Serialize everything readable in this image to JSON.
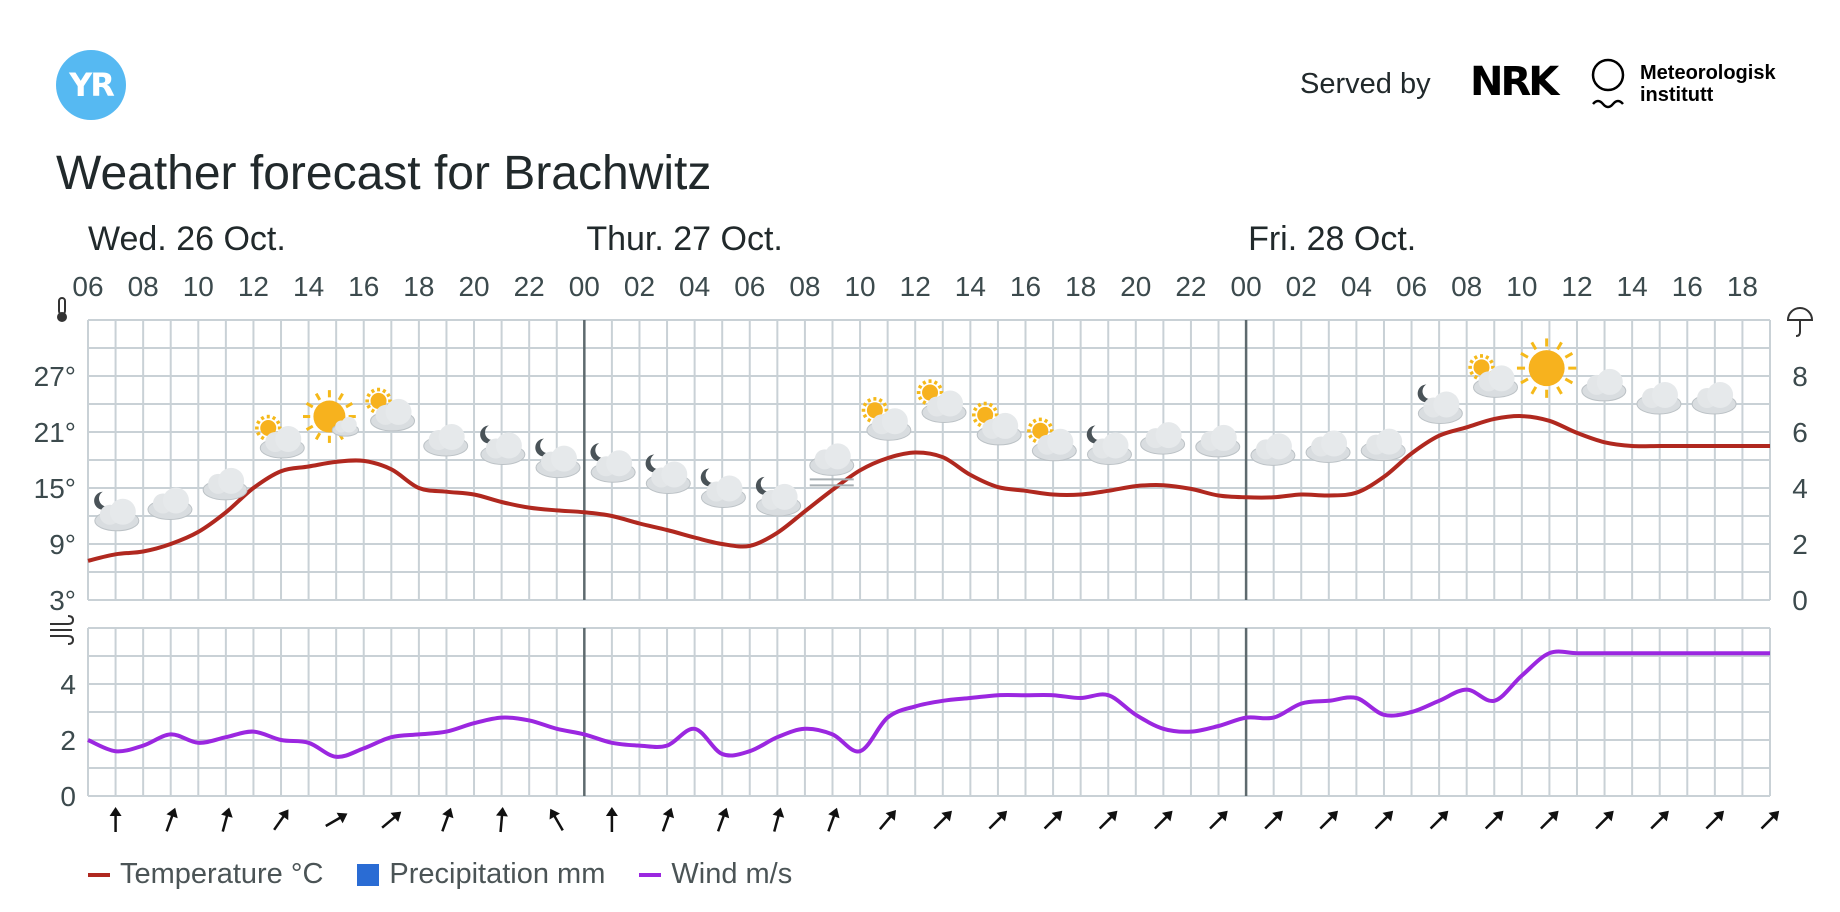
{
  "brand": {
    "logo_text": "YR",
    "served_by": "Served by",
    "nrk_text": "NRK",
    "met_line1": "Meteorologisk",
    "met_line2": "institutt"
  },
  "title": "Weather forecast for Brachwitz",
  "colors": {
    "temperature": "#b0281f",
    "wind": "#9b27e0",
    "precipitation": "#2a6cd4",
    "grid": "#c9d1d6",
    "day_divider": "#5e6a6e",
    "accent": "#56b9f2"
  },
  "icons": {
    "temperature_axis": "thermometer-icon",
    "precipitation_axis": "umbrella-icon",
    "wind_axis": "wind-icon"
  },
  "legend": [
    {
      "label": "Temperature °C",
      "color": "#b0281f",
      "shape": "line"
    },
    {
      "label": "Precipitation mm",
      "color": "#2a6cd4",
      "shape": "square"
    },
    {
      "label": "Wind m/s",
      "color": "#9b27e0",
      "shape": "line"
    }
  ],
  "chart_data": {
    "type": "line",
    "x_hours": [
      0,
      1,
      2,
      3,
      4,
      5,
      6,
      7,
      8,
      9,
      10,
      11,
      12,
      13,
      14,
      15,
      16,
      17,
      18,
      19,
      20,
      21,
      22,
      23,
      24,
      25,
      26,
      27,
      28,
      29,
      30,
      31,
      32,
      33,
      34,
      35,
      36,
      37,
      38,
      39,
      40,
      41,
      42,
      43,
      44,
      45,
      46,
      47,
      48,
      49,
      50,
      51,
      52,
      53,
      54,
      55,
      56,
      57,
      58,
      59,
      60,
      61
    ],
    "start_hour": 6,
    "hour_labels": [
      "06",
      "08",
      "10",
      "12",
      "14",
      "16",
      "18",
      "20",
      "22",
      "00",
      "02",
      "04",
      "06",
      "08",
      "10",
      "12",
      "14",
      "16",
      "18",
      "20",
      "22",
      "00",
      "02",
      "04",
      "06",
      "08",
      "10",
      "12",
      "14",
      "16",
      "18"
    ],
    "days": [
      {
        "label": "Wed. 26 Oct.",
        "start_index": 0
      },
      {
        "label": "Thur. 27 Oct.",
        "start_index": 18
      },
      {
        "label": "Fri. 28 Oct.",
        "start_index": 42
      }
    ],
    "temperature": {
      "name": "Temperature °C",
      "ylim": [
        3,
        33
      ],
      "ticks": [
        "3°",
        "9°",
        "15°",
        "21°",
        "27°"
      ],
      "tick_values": [
        3,
        9,
        15,
        21,
        27
      ],
      "values": [
        7.2,
        7.9,
        8.2,
        9.0,
        10.3,
        12.4,
        15.0,
        16.8,
        17.3,
        17.8,
        17.9,
        17.0,
        15.0,
        14.6,
        14.3,
        13.5,
        12.9,
        12.6,
        12.4,
        12.0,
        11.2,
        10.5,
        9.7,
        9.0,
        8.8,
        10.2,
        12.5,
        14.8,
        16.9,
        18.2,
        18.8,
        18.3,
        16.4,
        15.1,
        14.7,
        14.3,
        14.3,
        14.7,
        15.2,
        15.3,
        14.9,
        14.2,
        14.0,
        14.0,
        14.3,
        14.2,
        14.5,
        16.2,
        18.7,
        20.6,
        21.5,
        22.4,
        22.7,
        22.2,
        20.9,
        19.9,
        19.5,
        19.5,
        19.5,
        19.5,
        19.5,
        19.5
      ]
    },
    "precipitation": {
      "name": "Precipitation mm",
      "ylim": [
        0,
        10
      ],
      "ticks": [
        "0",
        "2",
        "4",
        "6",
        "8"
      ],
      "tick_values": [
        0,
        2,
        4,
        6,
        8
      ]
    },
    "wind": {
      "name": "Wind m/s",
      "ylim": [
        0,
        6
      ],
      "ticks": [
        "0",
        "2",
        "4"
      ],
      "tick_values": [
        0,
        2,
        4
      ],
      "values": [
        2.0,
        1.6,
        1.8,
        2.2,
        1.9,
        2.1,
        2.3,
        2.0,
        1.9,
        1.4,
        1.7,
        2.1,
        2.2,
        2.3,
        2.6,
        2.8,
        2.7,
        2.4,
        2.2,
        1.9,
        1.8,
        1.8,
        2.4,
        1.5,
        1.6,
        2.1,
        2.4,
        2.2,
        1.6,
        2.8,
        3.2,
        3.4,
        3.5,
        3.6,
        3.6,
        3.6,
        3.5,
        3.6,
        2.9,
        2.4,
        2.3,
        2.5,
        2.8,
        2.8,
        3.3,
        3.4,
        3.5,
        2.9,
        3.0,
        3.4,
        3.8,
        3.4,
        4.3,
        5.1,
        5.1,
        5.1,
        5.1,
        5.1,
        5.1,
        5.1,
        5.1,
        5.1
      ]
    },
    "weather_symbols": [
      {
        "index": 0,
        "type": "partly-cloudy-night"
      },
      {
        "index": 2,
        "type": "cloudy"
      },
      {
        "index": 4,
        "type": "cloudy"
      },
      {
        "index": 6,
        "type": "partly-cloudy-day"
      },
      {
        "index": 8,
        "type": "fair-day"
      },
      {
        "index": 10,
        "type": "partly-cloudy-day"
      },
      {
        "index": 12,
        "type": "cloudy"
      },
      {
        "index": 14,
        "type": "partly-cloudy-night"
      },
      {
        "index": 16,
        "type": "partly-cloudy-night"
      },
      {
        "index": 18,
        "type": "partly-cloudy-night"
      },
      {
        "index": 20,
        "type": "partly-cloudy-night"
      },
      {
        "index": 22,
        "type": "partly-cloudy-night"
      },
      {
        "index": 24,
        "type": "partly-cloudy-night"
      },
      {
        "index": 26,
        "type": "fog"
      },
      {
        "index": 28,
        "type": "partly-cloudy-day"
      },
      {
        "index": 30,
        "type": "partly-cloudy-day"
      },
      {
        "index": 32,
        "type": "partly-cloudy-day"
      },
      {
        "index": 34,
        "type": "partly-cloudy-day"
      },
      {
        "index": 36,
        "type": "partly-cloudy-night"
      },
      {
        "index": 38,
        "type": "cloudy"
      },
      {
        "index": 40,
        "type": "cloudy"
      },
      {
        "index": 42,
        "type": "cloudy"
      },
      {
        "index": 44,
        "type": "cloudy"
      },
      {
        "index": 46,
        "type": "cloudy"
      },
      {
        "index": 48,
        "type": "partly-cloudy-night"
      },
      {
        "index": 50,
        "type": "partly-cloudy-day"
      },
      {
        "index": 52,
        "type": "clear-sky-day"
      },
      {
        "index": 54,
        "type": "cloudy"
      },
      {
        "index": 56,
        "type": "cloudy"
      },
      {
        "index": 58,
        "type": "cloudy"
      }
    ],
    "wind_direction_deg": [
      0,
      0,
      0,
      20,
      20,
      15,
      25,
      35,
      45,
      60,
      70,
      50,
      40,
      20,
      10,
      5,
      5,
      -30,
      -15,
      0,
      5,
      20,
      30,
      20,
      20,
      15,
      15,
      20,
      30,
      40,
      45,
      45,
      45,
      45,
      45,
      45,
      45,
      45,
      45,
      45,
      45,
      45,
      45,
      45,
      45,
      45,
      45,
      45,
      45,
      45,
      45,
      45,
      45,
      45,
      45,
      45,
      45,
      45,
      45,
      45,
      45,
      45
    ],
    "wind_arrows_count": 31
  }
}
